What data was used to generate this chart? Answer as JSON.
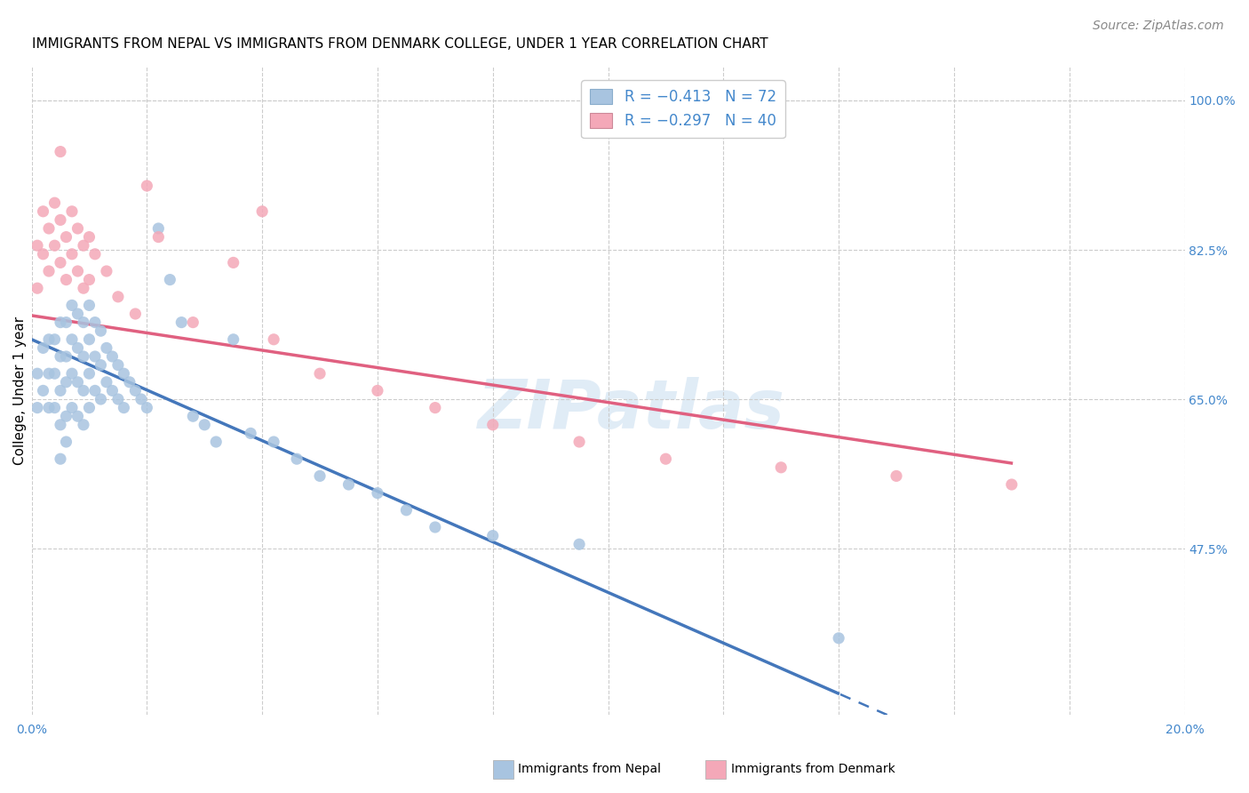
{
  "title": "IMMIGRANTS FROM NEPAL VS IMMIGRANTS FROM DENMARK COLLEGE, UNDER 1 YEAR CORRELATION CHART",
  "source": "Source: ZipAtlas.com",
  "ylabel": "College, Under 1 year",
  "xlim": [
    0.0,
    0.2
  ],
  "ylim": [
    0.28,
    1.04
  ],
  "xticks": [
    0.0,
    0.02,
    0.04,
    0.06,
    0.08,
    0.1,
    0.12,
    0.14,
    0.16,
    0.18,
    0.2
  ],
  "xticklabels": [
    "0.0%",
    "",
    "",
    "",
    "",
    "",
    "",
    "",
    "",
    "",
    "20.0%"
  ],
  "right_yticks": [
    1.0,
    0.825,
    0.65,
    0.475
  ],
  "right_yticklabels": [
    "100.0%",
    "82.5%",
    "65.0%",
    "47.5%"
  ],
  "nepal_color": "#a8c4e0",
  "denmark_color": "#f4a8b8",
  "nepal_line_color": "#4477bb",
  "denmark_line_color": "#e06080",
  "background_color": "#ffffff",
  "grid_color": "#cccccc",
  "watermark": "ZIPatlas",
  "nepal_line_x0": 0.0,
  "nepal_line_y0": 0.72,
  "nepal_line_x1": 0.14,
  "nepal_line_y1": 0.305,
  "denmark_line_x0": 0.0,
  "denmark_line_y0": 0.748,
  "denmark_line_x1": 0.17,
  "denmark_line_y1": 0.575,
  "nepal_x": [
    0.001,
    0.001,
    0.002,
    0.002,
    0.003,
    0.003,
    0.003,
    0.004,
    0.004,
    0.004,
    0.005,
    0.005,
    0.005,
    0.005,
    0.005,
    0.006,
    0.006,
    0.006,
    0.006,
    0.006,
    0.007,
    0.007,
    0.007,
    0.007,
    0.008,
    0.008,
    0.008,
    0.008,
    0.009,
    0.009,
    0.009,
    0.009,
    0.01,
    0.01,
    0.01,
    0.01,
    0.011,
    0.011,
    0.011,
    0.012,
    0.012,
    0.012,
    0.013,
    0.013,
    0.014,
    0.014,
    0.015,
    0.015,
    0.016,
    0.016,
    0.017,
    0.018,
    0.019,
    0.02,
    0.022,
    0.024,
    0.026,
    0.028,
    0.03,
    0.032,
    0.035,
    0.038,
    0.042,
    0.046,
    0.05,
    0.055,
    0.06,
    0.065,
    0.07,
    0.08,
    0.095,
    0.14
  ],
  "nepal_y": [
    0.68,
    0.64,
    0.71,
    0.66,
    0.72,
    0.68,
    0.64,
    0.72,
    0.68,
    0.64,
    0.74,
    0.7,
    0.66,
    0.62,
    0.58,
    0.74,
    0.7,
    0.67,
    0.63,
    0.6,
    0.76,
    0.72,
    0.68,
    0.64,
    0.75,
    0.71,
    0.67,
    0.63,
    0.74,
    0.7,
    0.66,
    0.62,
    0.76,
    0.72,
    0.68,
    0.64,
    0.74,
    0.7,
    0.66,
    0.73,
    0.69,
    0.65,
    0.71,
    0.67,
    0.7,
    0.66,
    0.69,
    0.65,
    0.68,
    0.64,
    0.67,
    0.66,
    0.65,
    0.64,
    0.85,
    0.79,
    0.74,
    0.63,
    0.62,
    0.6,
    0.72,
    0.61,
    0.6,
    0.58,
    0.56,
    0.55,
    0.54,
    0.52,
    0.5,
    0.49,
    0.48,
    0.37
  ],
  "denmark_x": [
    0.001,
    0.001,
    0.002,
    0.002,
    0.003,
    0.003,
    0.004,
    0.004,
    0.005,
    0.005,
    0.006,
    0.006,
    0.007,
    0.007,
    0.008,
    0.008,
    0.009,
    0.009,
    0.01,
    0.01,
    0.011,
    0.013,
    0.015,
    0.018,
    0.022,
    0.028,
    0.035,
    0.042,
    0.05,
    0.06,
    0.07,
    0.08,
    0.095,
    0.11,
    0.13,
    0.15,
    0.17,
    0.005,
    0.02,
    0.04
  ],
  "denmark_y": [
    0.83,
    0.78,
    0.87,
    0.82,
    0.85,
    0.8,
    0.88,
    0.83,
    0.86,
    0.81,
    0.84,
    0.79,
    0.87,
    0.82,
    0.85,
    0.8,
    0.83,
    0.78,
    0.84,
    0.79,
    0.82,
    0.8,
    0.77,
    0.75,
    0.84,
    0.74,
    0.81,
    0.72,
    0.68,
    0.66,
    0.64,
    0.62,
    0.6,
    0.58,
    0.57,
    0.56,
    0.55,
    0.94,
    0.9,
    0.87
  ],
  "title_fontsize": 11,
  "axis_label_fontsize": 11,
  "tick_fontsize": 10,
  "legend_fontsize": 12,
  "source_fontsize": 10
}
